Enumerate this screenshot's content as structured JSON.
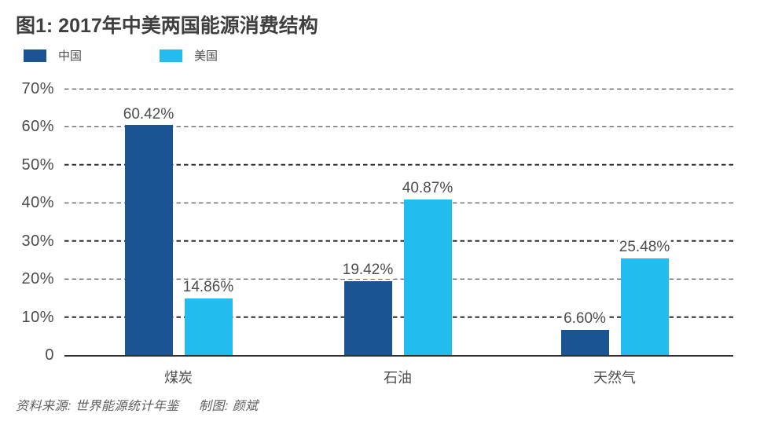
{
  "title": "图1: 2017年中美两国能源消费结构",
  "source": {
    "data_source": "资料来源: 世界能源统计年鉴",
    "credit": "制图: 颜斌"
  },
  "chart_data": {
    "type": "bar",
    "title": "图1: 2017年中美两国能源消费结构",
    "categories": [
      "煤炭",
      "石油",
      "天然气"
    ],
    "category_ids": [
      "coal",
      "oil",
      "natural-gas"
    ],
    "series": [
      {
        "id": "china",
        "name": "中国",
        "color": "#1a5493",
        "values": [
          60.42,
          19.42,
          6.6
        ],
        "labels": [
          "60.42%",
          "19.42%",
          "6.60%"
        ]
      },
      {
        "id": "usa",
        "name": "美国",
        "color": "#22bdee",
        "values": [
          14.86,
          40.87,
          25.48
        ],
        "labels": [
          "14.86%",
          "40.87%",
          "25.48%"
        ]
      }
    ],
    "xlabel": "",
    "ylabel": "",
    "ylim": [
      0,
      70
    ],
    "y_ticks": [
      {
        "label": "70%",
        "value": 70
      },
      {
        "label": "60%",
        "value": 60
      },
      {
        "label": "50%",
        "value": 50
      },
      {
        "label": "40%",
        "value": 40
      },
      {
        "label": "30%",
        "value": 30
      },
      {
        "label": "20%",
        "value": 20
      },
      {
        "label": "10%",
        "value": 10
      },
      {
        "label": "0",
        "value": 0
      }
    ],
    "grid": "horizontal-dashed",
    "legend_position": "top-left"
  }
}
